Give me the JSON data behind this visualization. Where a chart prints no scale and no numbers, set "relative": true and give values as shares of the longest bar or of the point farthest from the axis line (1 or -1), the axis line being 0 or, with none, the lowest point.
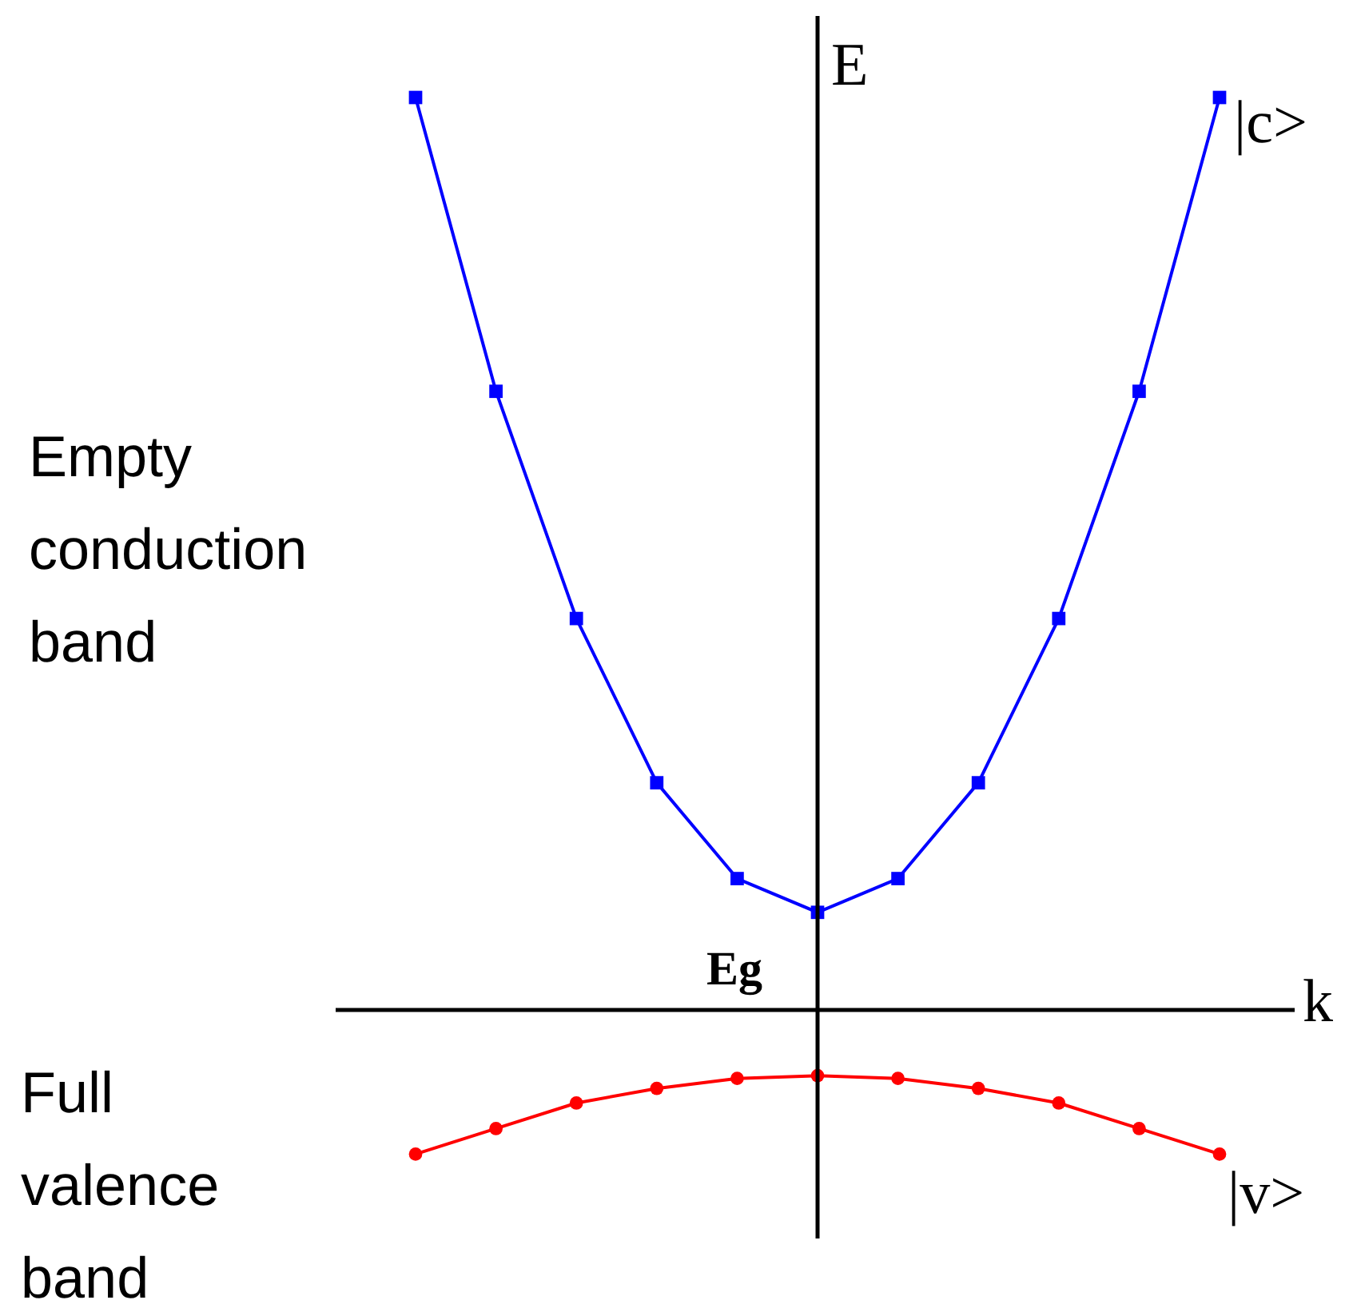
{
  "chart_data": {
    "type": "line",
    "relative": true,
    "xlabel": "k",
    "ylabel": "E",
    "categories": [
      null,
      null,
      null,
      null,
      null,
      null,
      null,
      null,
      null,
      null,
      null
    ],
    "series": [
      {
        "name": "|c>",
        "color": "#0000ff",
        "marker": "square",
        "values": [
          1,
          0.678,
          0.429,
          0.249,
          0.144,
          0.107,
          0.144,
          0.249,
          0.429,
          0.678,
          1
        ]
      },
      {
        "name": "|v>",
        "color": "#ff0000",
        "marker": "circle",
        "values": [
          -0.158,
          -0.13,
          -0.102,
          -0.086,
          -0.075,
          -0.072,
          -0.075,
          -0.086,
          -0.102,
          -0.13,
          -0.158
        ]
      }
    ],
    "annotations": [
      "Empty conduction band",
      "Full valence band",
      "Eg"
    ]
  }
}
